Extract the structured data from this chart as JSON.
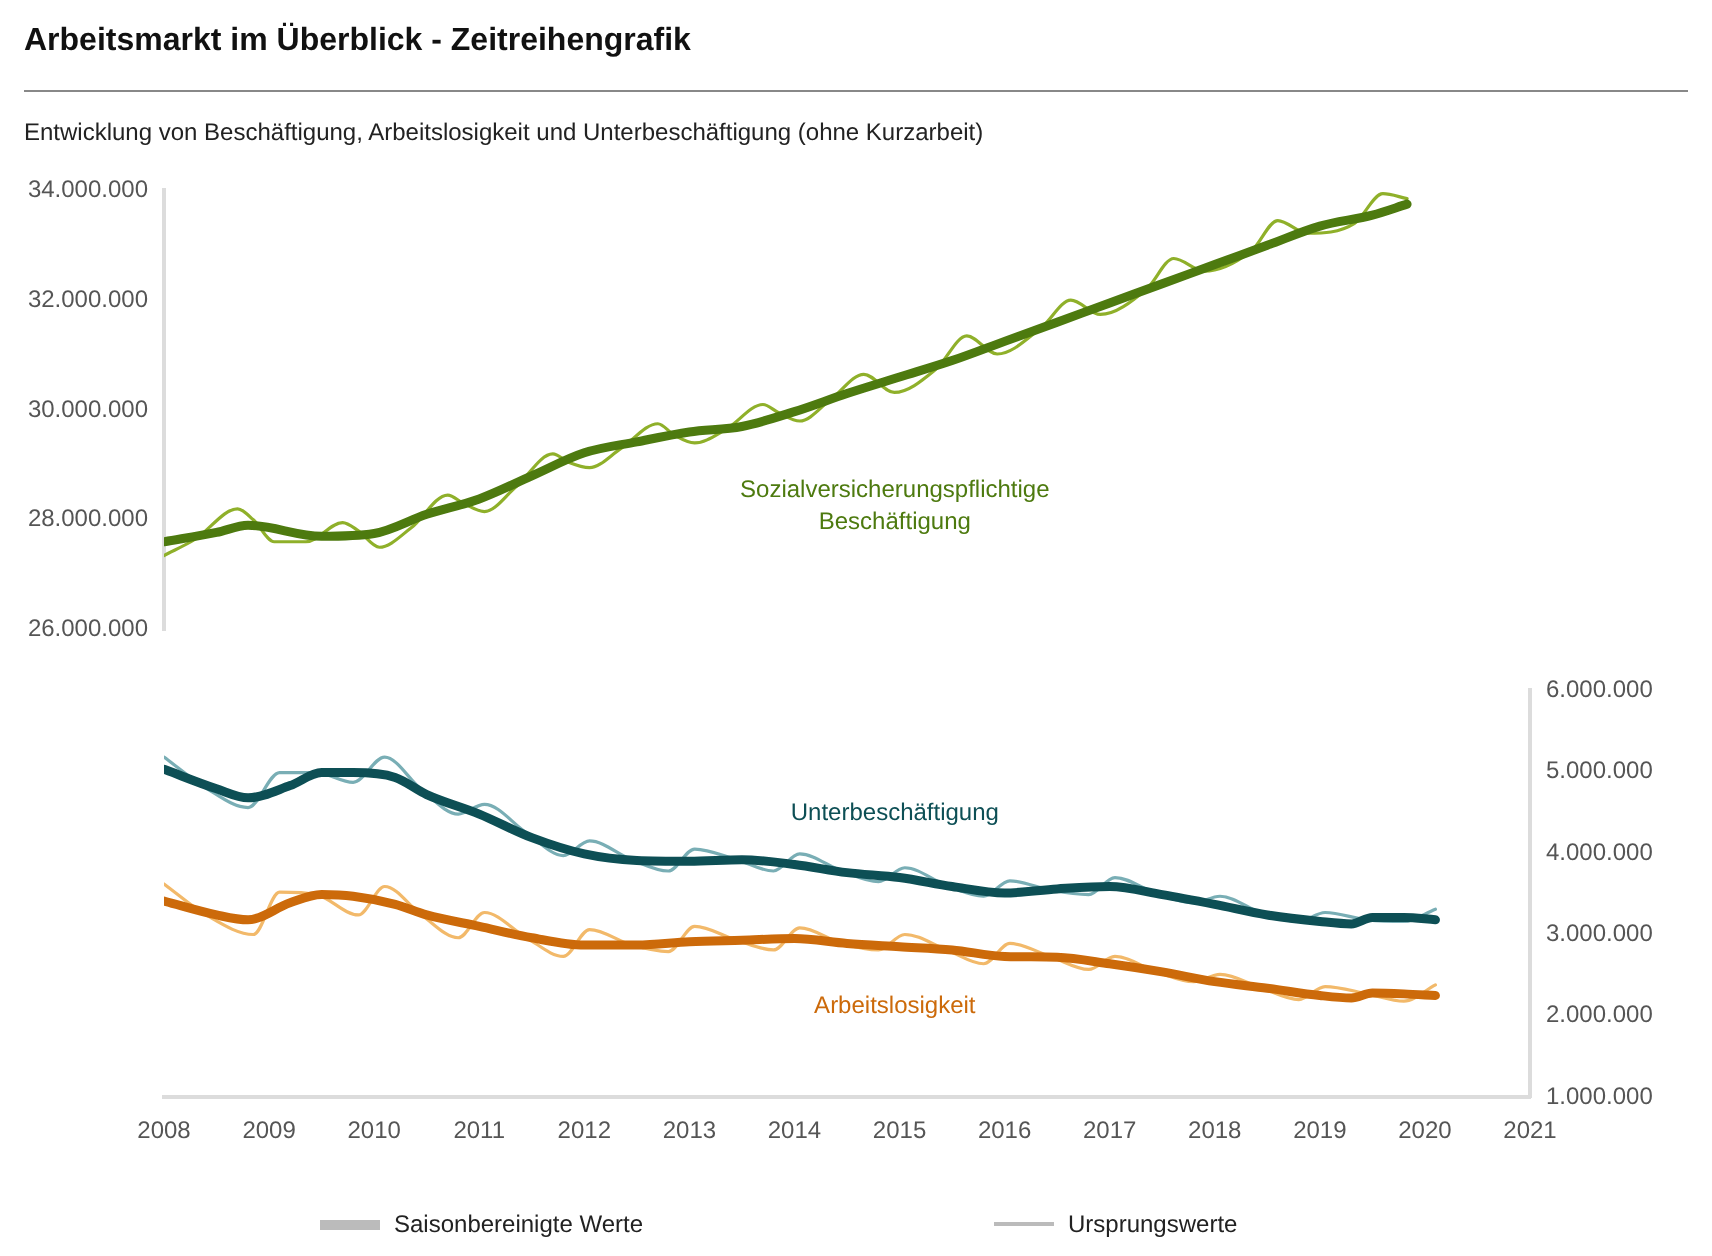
{
  "chart_data": [
    {
      "type": "line",
      "title": "Arbeitsmarkt im Überblick - Zeitreihengrafik",
      "subtitle": "Entwicklung von Beschäftigung, Arbeitslosigkeit und Unterbeschäftigung (ohne Kurzarbeit)",
      "xlim": [
        2008,
        2021
      ],
      "xticks": [
        2008,
        2009,
        2010,
        2011,
        2012,
        2013,
        2014,
        2015,
        2016,
        2017,
        2018,
        2019,
        2020,
        2021
      ],
      "ylim": [
        26000000,
        34000000
      ],
      "yticks": [
        {
          "value": 26000000,
          "label": "26.000.000"
        },
        {
          "value": 28000000,
          "label": "28.000.000"
        },
        {
          "value": 30000000,
          "label": "30.000.000"
        },
        {
          "value": 32000000,
          "label": "32.000.000"
        },
        {
          "value": 34000000,
          "label": "34.000.000"
        }
      ],
      "tick_labels": "y",
      "grid": false,
      "marker": "none",
      "line_style": "solid",
      "series": [
        {
          "name": "Sozialversicherungspflichtige Beschäftigung",
          "color": "#4d7a0f",
          "x": [
            2008,
            2008.5,
            2008.8,
            2009.5,
            2010,
            2010.5,
            2011,
            2011.5,
            2012,
            2012.5,
            2013,
            2013.5,
            2014,
            2014.5,
            2015,
            2015.5,
            2016,
            2016.5,
            2017,
            2017.5,
            2018,
            2018.5,
            2019,
            2019.5,
            2019.83
          ],
          "values": [
            27600000,
            27770000,
            27900000,
            27700000,
            27750000,
            28100000,
            28380000,
            28800000,
            29220000,
            29420000,
            29600000,
            29700000,
            29970000,
            30300000,
            30600000,
            30900000,
            31250000,
            31600000,
            31950000,
            32300000,
            32650000,
            33000000,
            33350000,
            33550000,
            33750000
          ]
        },
        {
          "color": "#8fb02a",
          "x": [
            2008,
            2008.3,
            2008.7,
            2008.85,
            2009.05,
            2009.35,
            2009.7,
            2009.85,
            2010.05,
            2010.35,
            2010.7,
            2010.85,
            2011.05,
            2011.35,
            2011.7,
            2011.85,
            2012.05,
            2012.35,
            2012.7,
            2012.85,
            2013.05,
            2013.35,
            2013.7,
            2013.85,
            2014.05,
            2014.35,
            2014.66,
            2014.95,
            2015.35,
            2015.64,
            2015.93,
            2016.35,
            2016.63,
            2016.91,
            2017.35,
            2017.61,
            2017.9,
            2018.35,
            2018.6,
            2018.88,
            2019.33,
            2019.6,
            2019.83
          ],
          "values": [
            27350000,
            27650000,
            28200000,
            28000000,
            27600000,
            27600000,
            27950000,
            27800000,
            27500000,
            27850000,
            28450000,
            28300000,
            28150000,
            28600000,
            29200000,
            29050000,
            28950000,
            29300000,
            29750000,
            29550000,
            29400000,
            29650000,
            30100000,
            29950000,
            29800000,
            30200000,
            30650000,
            30320000,
            30750000,
            31350000,
            31020000,
            31500000,
            32000000,
            31740000,
            32200000,
            32760000,
            32530000,
            32900000,
            33450000,
            33220000,
            33400000,
            33940000,
            33850000
          ]
        }
      ]
    },
    {
      "type": "line",
      "xlim": [
        2008,
        2021
      ],
      "xticks": [
        2008,
        2009,
        2010,
        2011,
        2012,
        2013,
        2014,
        2015,
        2016,
        2017,
        2018,
        2019,
        2020,
        2021
      ],
      "y2lim": [
        1000000,
        6000000
      ],
      "y2ticks": [
        {
          "value": 1000000,
          "label": "1.000.000"
        },
        {
          "value": 2000000,
          "label": "2.000.000"
        },
        {
          "value": 3000000,
          "label": "3.000.000"
        },
        {
          "value": 4000000,
          "label": "4.000.000"
        },
        {
          "value": 5000000,
          "label": "5.000.000"
        },
        {
          "value": 6000000,
          "label": "6.000.000"
        }
      ],
      "grid": false,
      "marker": "none",
      "line_style": "solid",
      "annotations": [
        "Saisonbereinigte Werte",
        "Ursprungswerte"
      ],
      "series": [
        {
          "name": "Unterbeschäftigung",
          "color": "#0d4f55",
          "axis": "y2",
          "x": [
            2008,
            2008.5,
            2008.8,
            2009.2,
            2009.5,
            2009.8,
            2010.2,
            2010.5,
            2011,
            2011.5,
            2012,
            2012.5,
            2013,
            2013.5,
            2014,
            2014.5,
            2015,
            2015.5,
            2016,
            2016.5,
            2017,
            2017.5,
            2018,
            2018.5,
            2019,
            2019.3,
            2019.5,
            2019.8,
            2020.1
          ],
          "values": [
            5030000,
            4790000,
            4680000,
            4830000,
            4990000,
            4990000,
            4930000,
            4720000,
            4480000,
            4190000,
            3990000,
            3910000,
            3900000,
            3920000,
            3860000,
            3760000,
            3700000,
            3590000,
            3510000,
            3560000,
            3590000,
            3490000,
            3370000,
            3240000,
            3160000,
            3130000,
            3210000,
            3210000,
            3180000
          ]
        },
        {
          "color": "#79aeb5",
          "axis": "y2",
          "x": [
            2008,
            2008.4,
            2008.8,
            2009.1,
            2009.45,
            2009.8,
            2010.1,
            2010.45,
            2010.8,
            2011.05,
            2011.45,
            2011.8,
            2012.05,
            2012.45,
            2012.8,
            2013.05,
            2013.45,
            2013.8,
            2014.05,
            2014.45,
            2014.8,
            2015.05,
            2015.45,
            2015.8,
            2016.05,
            2016.45,
            2016.8,
            2017.05,
            2017.45,
            2017.8,
            2018.05,
            2018.45,
            2018.8,
            2019.05,
            2019.45,
            2019.8,
            2020.1
          ],
          "values": [
            5180000,
            4800000,
            4560000,
            4990000,
            4990000,
            4870000,
            5180000,
            4780000,
            4480000,
            4600000,
            4250000,
            3970000,
            4150000,
            3920000,
            3780000,
            4050000,
            3920000,
            3780000,
            3990000,
            3780000,
            3650000,
            3820000,
            3600000,
            3470000,
            3660000,
            3540000,
            3490000,
            3700000,
            3500000,
            3390000,
            3470000,
            3260000,
            3160000,
            3270000,
            3180000,
            3160000,
            3310000
          ]
        },
        {
          "name": "Arbeitslosigkeit",
          "color": "#cc6a0a",
          "axis": "y2",
          "x": [
            2008,
            2008.5,
            2008.8,
            2009.2,
            2009.5,
            2009.8,
            2010.2,
            2010.5,
            2011,
            2011.5,
            2012,
            2012.5,
            2013,
            2013.5,
            2014,
            2014.5,
            2015,
            2015.5,
            2016,
            2016.5,
            2017,
            2017.5,
            2018,
            2018.5,
            2019,
            2019.3,
            2019.5,
            2019.8,
            2020.1
          ],
          "values": [
            3410000,
            3240000,
            3180000,
            3390000,
            3490000,
            3470000,
            3370000,
            3240000,
            3100000,
            2960000,
            2870000,
            2870000,
            2910000,
            2930000,
            2950000,
            2890000,
            2850000,
            2810000,
            2730000,
            2720000,
            2640000,
            2540000,
            2420000,
            2340000,
            2250000,
            2220000,
            2280000,
            2270000,
            2250000
          ]
        },
        {
          "color": "#f2b96a",
          "axis": "y2",
          "x": [
            2008,
            2008.4,
            2008.85,
            2009.1,
            2009.45,
            2009.85,
            2010.1,
            2010.45,
            2010.8,
            2011.05,
            2011.45,
            2011.8,
            2012.05,
            2012.45,
            2012.8,
            2013.05,
            2013.45,
            2013.8,
            2014.05,
            2014.45,
            2014.8,
            2015.05,
            2015.45,
            2015.8,
            2016.05,
            2016.45,
            2016.8,
            2017.05,
            2017.45,
            2017.8,
            2018.05,
            2018.45,
            2018.8,
            2019.05,
            2019.45,
            2019.8,
            2020.1
          ],
          "values": [
            3620000,
            3240000,
            3000000,
            3520000,
            3490000,
            3240000,
            3590000,
            3240000,
            2960000,
            3270000,
            2960000,
            2730000,
            3060000,
            2870000,
            2790000,
            3100000,
            2930000,
            2810000,
            3080000,
            2890000,
            2810000,
            3000000,
            2810000,
            2640000,
            2890000,
            2720000,
            2570000,
            2730000,
            2540000,
            2420000,
            2510000,
            2340000,
            2200000,
            2360000,
            2270000,
            2180000,
            2380000
          ]
        }
      ]
    }
  ]
}
